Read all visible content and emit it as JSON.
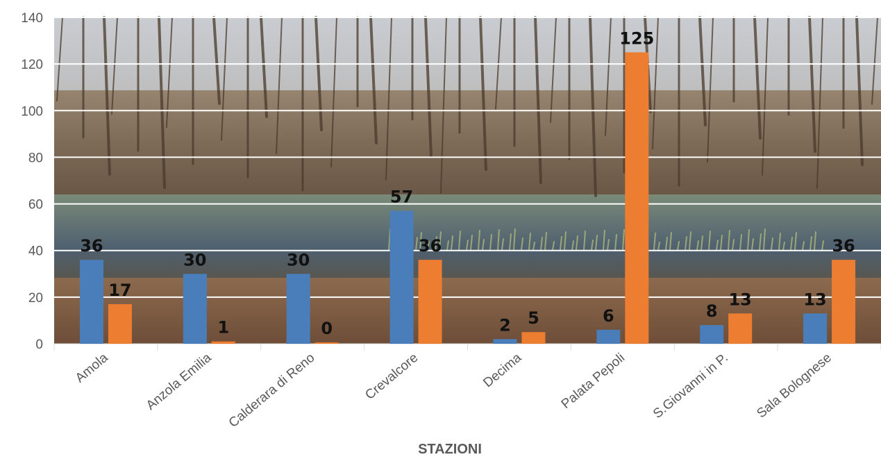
{
  "chart_data": {
    "type": "bar",
    "title": "",
    "xlabel": "STAZIONI",
    "ylabel": "",
    "ylim": [
      0,
      140
    ],
    "yticks": [
      0,
      20,
      40,
      60,
      80,
      100,
      120,
      140
    ],
    "grid": true,
    "legend": "none",
    "background": "photograph of a wooded wetland with bare trees and a pond",
    "categories": [
      "Amola",
      "Anzola Emilia",
      "Calderara di Reno",
      "Crevalcore",
      "Decima",
      "Palata Pepoli",
      "S.Giovanni in P.",
      "Sala Bolognese"
    ],
    "series": [
      {
        "values": [
          36,
          30,
          30,
          57,
          2,
          6,
          8,
          13
        ],
        "color": "#4a7ebb"
      },
      {
        "values": [
          17,
          1,
          0,
          36,
          5,
          125,
          13,
          36
        ],
        "color": "#ed7d31"
      }
    ]
  },
  "colors": {
    "gridline": "#ffffff",
    "axis_line": "#d9d9d9",
    "tick_text": "#595959",
    "data_label": "#111111"
  }
}
